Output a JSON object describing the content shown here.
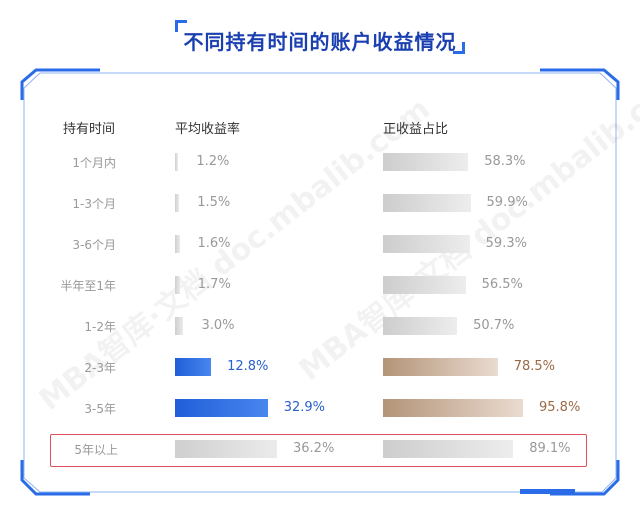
{
  "title": "不同持有时间的账户收益情况",
  "headers": {
    "period": "持有时间",
    "avg_return": "平均收益率",
    "positive_ratio": "正收益占比"
  },
  "chart_data": {
    "type": "bar",
    "categories": [
      "1个月内",
      "1-3个月",
      "3-6个月",
      "半年至1年",
      "1-2年",
      "2-3年",
      "3-5年",
      "5年以上"
    ],
    "series": [
      {
        "name": "平均收益率",
        "values": [
          1.2,
          1.5,
          1.6,
          1.7,
          3.0,
          12.8,
          32.9,
          36.2
        ],
        "labels": [
          "1.2%",
          "1.5%",
          "1.6%",
          "1.7%",
          "3.0%",
          "12.8%",
          "32.9%",
          "36.2%"
        ]
      },
      {
        "name": "正收益占比",
        "values": [
          58.3,
          59.9,
          59.3,
          56.5,
          50.7,
          78.5,
          95.8,
          89.1
        ],
        "labels": [
          "58.3%",
          "59.9%",
          "59.3%",
          "56.5%",
          "50.7%",
          "78.5%",
          "95.8%",
          "89.1%"
        ]
      }
    ],
    "highlighted_category": "5年以上"
  },
  "colors": {
    "accent_blue": "#2f6fe0",
    "accent_brown": "#b89a82",
    "gray_bar": "#d4d4d4",
    "highlight": "#e0505a",
    "title": "#1a3fb0"
  },
  "watermark": "MBA智库·文档 doc.mbalib.com"
}
